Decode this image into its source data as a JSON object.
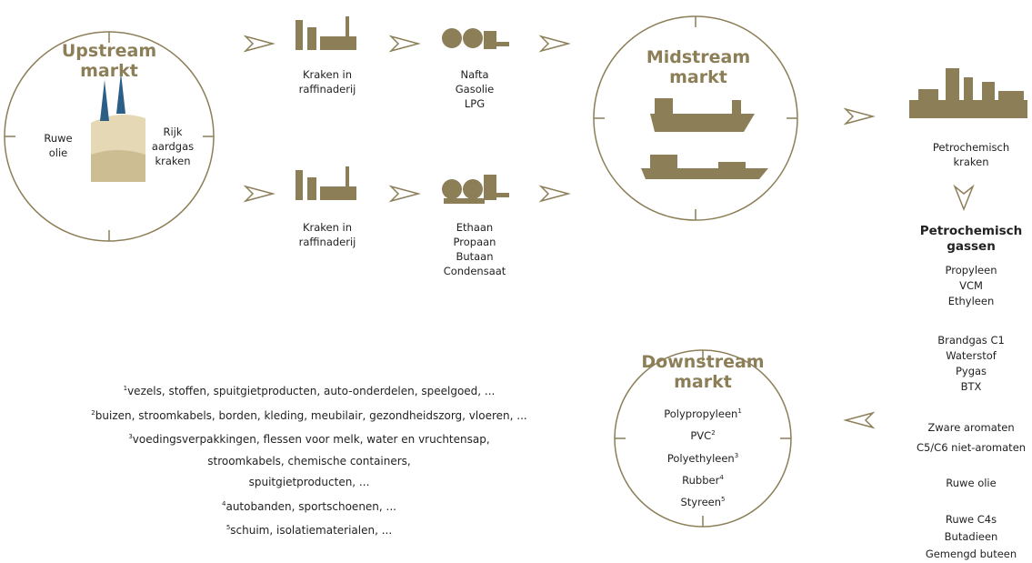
{
  "upstream": {
    "title": [
      "Upstream",
      "markt"
    ],
    "left_label": [
      "Ruwe",
      "olie"
    ],
    "right_label": [
      "Rijk",
      "aardgas",
      "kraken"
    ]
  },
  "row1": {
    "step": [
      "Kraken in",
      "raffinaderij"
    ],
    "products": [
      "Nafta",
      "Gasolie",
      "LPG"
    ]
  },
  "row2": {
    "step": [
      "Kraken in",
      "raffinaderij"
    ],
    "products": [
      "Ethaan",
      "Propaan",
      "Butaan",
      "Condensaat"
    ]
  },
  "midstream": {
    "title": [
      "Midstream",
      "markt"
    ]
  },
  "petrochem": {
    "label": [
      "Petrochemisch",
      "kraken"
    ],
    "heading": [
      "Petrochemisch",
      "gassen"
    ],
    "groups": [
      [
        "Propyleen",
        "VCM",
        "Ethyleen"
      ],
      [
        "Brandgas C1",
        "Waterstof",
        "Pygas",
        "BTX"
      ],
      [
        "Zware aromaten",
        "C5/C6 niet-aromaten"
      ],
      [
        "Ruwe olie"
      ],
      [
        "Ruwe C4s",
        "Butadieen",
        "Gemengd buteen"
      ]
    ]
  },
  "downstream": {
    "title": [
      "Downstream",
      "markt"
    ],
    "items": [
      {
        "name": "Polypropyleen",
        "note": "1"
      },
      {
        "name": "PVC",
        "note": "2"
      },
      {
        "name": "Polyethyleen",
        "note": "3"
      },
      {
        "name": "Rubber",
        "note": "4"
      },
      {
        "name": "Styreen",
        "note": "5"
      }
    ]
  },
  "footnotes": [
    {
      "mark": "1",
      "lines": [
        "vezels, stoffen, spuitgietproducten, auto-onderdelen, speelgoed, ..."
      ]
    },
    {
      "mark": "2",
      "lines": [
        "buizen, stroomkabels, borden, kleding, meubilair, gezondheidszorg, vloeren, ..."
      ]
    },
    {
      "mark": "3",
      "lines": [
        "voedingsverpakkingen, flessen voor melk, water en vruchtensap,",
        "stroomkabels, chemische containers,",
        "spuitgietproducten, ..."
      ]
    },
    {
      "mark": "4",
      "lines": [
        "autobanden, sportschoenen, ..."
      ]
    },
    {
      "mark": "5",
      "lines": [
        "schuim, isolatiematerialen, ..."
      ]
    }
  ]
}
